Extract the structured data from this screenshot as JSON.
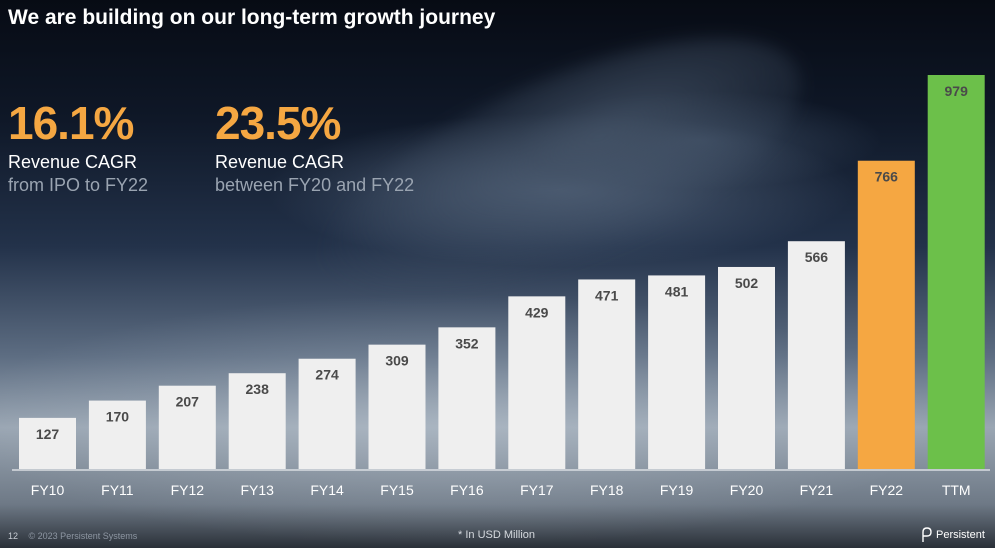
{
  "slide": {
    "title": "We are building on our long-term growth journey",
    "page_number": "12",
    "copyright": "© 2023 Persistent Systems",
    "footnote": "* In USD Million",
    "brand": "Persistent"
  },
  "stats": [
    {
      "value": "16.1%",
      "line1": "Revenue CAGR",
      "line2": "from IPO to FY22"
    },
    {
      "value": "23.5%",
      "line1": "Revenue CAGR",
      "line2": "between FY20 and FY22"
    }
  ],
  "colors": {
    "bar_default": "#efefef",
    "bar_fy22": "#f5a742",
    "bar_ttm": "#6cc04a",
    "accent": "#f5a742"
  },
  "chart_data": {
    "type": "bar",
    "title": "",
    "xlabel": "",
    "ylabel": "",
    "unit": "USD Million",
    "ylim": [
      0,
      979
    ],
    "grid": false,
    "categories": [
      "FY10",
      "FY11",
      "FY12",
      "FY13",
      "FY14",
      "FY15",
      "FY16",
      "FY17",
      "FY18",
      "FY19",
      "FY20",
      "FY21",
      "FY22",
      "TTM"
    ],
    "values": [
      127,
      170,
      207,
      238,
      274,
      309,
      352,
      429,
      471,
      481,
      502,
      566,
      766,
      979
    ],
    "bar_colors": [
      "#efefef",
      "#efefef",
      "#efefef",
      "#efefef",
      "#efefef",
      "#efefef",
      "#efefef",
      "#efefef",
      "#efefef",
      "#efefef",
      "#efefef",
      "#efefef",
      "#f5a742",
      "#6cc04a"
    ]
  }
}
